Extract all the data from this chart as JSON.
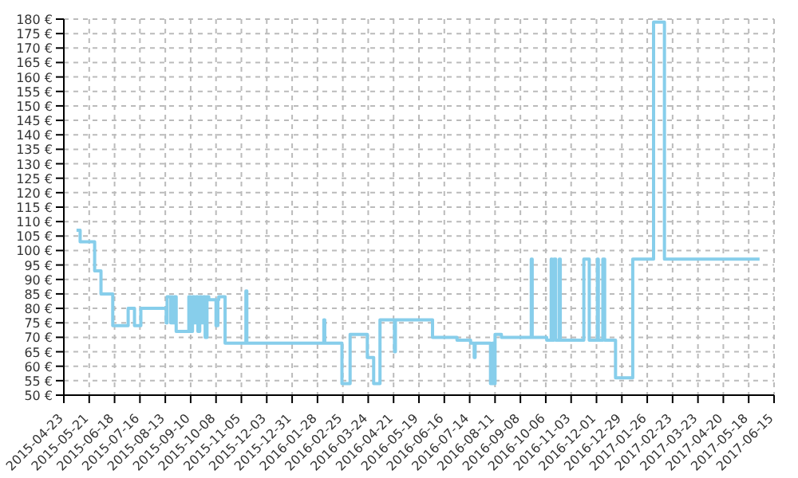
{
  "chart_data": {
    "type": "step",
    "x": [
      "2015-05-07",
      "2015-05-11",
      "2015-05-27",
      "2015-06-03",
      "2015-06-16",
      "2015-07-03",
      "2015-07-10",
      "2015-07-17",
      "2015-08-14",
      "2015-08-15",
      "2015-08-19",
      "2015-08-20",
      "2015-08-21",
      "2015-08-23",
      "2015-08-25",
      "2015-09-08",
      "2015-09-10",
      "2015-09-12",
      "2015-09-14",
      "2015-09-16",
      "2015-09-18",
      "2015-09-20",
      "2015-09-22",
      "2015-09-24",
      "2015-09-26",
      "2015-09-28",
      "2015-09-30",
      "2015-10-08",
      "2015-10-10",
      "2015-10-11",
      "2015-10-18",
      "2015-11-10",
      "2015-11-11",
      "2016-02-04",
      "2016-02-05",
      "2016-02-24",
      "2016-03-04",
      "2016-03-23",
      "2016-03-30",
      "2016-04-06",
      "2016-04-22",
      "2016-04-23",
      "2016-06-03",
      "2016-06-30",
      "2016-07-15",
      "2016-07-19",
      "2016-07-20",
      "2016-08-06",
      "2016-08-08",
      "2016-08-09",
      "2016-08-11",
      "2016-08-18",
      "2016-09-20",
      "2016-09-21",
      "2016-10-07",
      "2016-10-12",
      "2016-10-13",
      "2016-10-15",
      "2016-10-17",
      "2016-10-21",
      "2016-10-22",
      "2016-11-17",
      "2016-11-23",
      "2016-12-02",
      "2016-12-03",
      "2016-12-08",
      "2016-12-10",
      "2016-12-22",
      "2017-01-10",
      "2017-02-02",
      "2017-02-14",
      "2017-05-30"
    ],
    "series": [
      {
        "color": "#87ceeb",
        "values": [
          107,
          103,
          93,
          85,
          74,
          80,
          74,
          80,
          75,
          84,
          75,
          84,
          75,
          84,
          72,
          84,
          72,
          84,
          75,
          84,
          72,
          84,
          75,
          84,
          70,
          84,
          83,
          74,
          83,
          84,
          68,
          86,
          68,
          76,
          68,
          54,
          71,
          63,
          54,
          76,
          65,
          76,
          70,
          69,
          68,
          63,
          68,
          54,
          68,
          54,
          71,
          70,
          97,
          70,
          69,
          97,
          69,
          97,
          69,
          97,
          69,
          97,
          69,
          97,
          69,
          97,
          69,
          56,
          97,
          179,
          97,
          97
        ]
      }
    ],
    "xlim": [
      "2015-04-23",
      "2017-06-15"
    ],
    "xticks": [
      "2015-04-23",
      "2015-05-21",
      "2015-06-18",
      "2015-07-16",
      "2015-08-13",
      "2015-09-10",
      "2015-10-08",
      "2015-11-05",
      "2015-12-03",
      "2015-12-31",
      "2016-01-28",
      "2016-02-25",
      "2016-03-24",
      "2016-04-21",
      "2016-05-19",
      "2016-06-16",
      "2016-07-14",
      "2016-08-11",
      "2016-09-08",
      "2016-10-06",
      "2016-11-03",
      "2016-12-01",
      "2016-12-29",
      "2017-01-26",
      "2017-02-23",
      "2017-03-23",
      "2017-04-20",
      "2017-05-18",
      "2017-06-15"
    ],
    "ylim": [
      50,
      180
    ],
    "yticks": [
      {
        "value": 50,
        "label": "50 €"
      },
      {
        "value": 55,
        "label": "55 €"
      },
      {
        "value": 60,
        "label": "60 €"
      },
      {
        "value": 65,
        "label": "65 €"
      },
      {
        "value": 70,
        "label": "70 €"
      },
      {
        "value": 75,
        "label": "75 €"
      },
      {
        "value": 80,
        "label": "80 €"
      },
      {
        "value": 85,
        "label": "85 €"
      },
      {
        "value": 90,
        "label": "90 €"
      },
      {
        "value": 95,
        "label": "95 €"
      },
      {
        "value": 100,
        "label": "100 €"
      },
      {
        "value": 105,
        "label": "105 €"
      },
      {
        "value": 110,
        "label": "110 €"
      },
      {
        "value": 115,
        "label": "115 €"
      },
      {
        "value": 120,
        "label": "120 €"
      },
      {
        "value": 125,
        "label": "125 €"
      },
      {
        "value": 130,
        "label": "130 €"
      },
      {
        "value": 135,
        "label": "135 €"
      },
      {
        "value": 140,
        "label": "140 €"
      },
      {
        "value": 145,
        "label": "145 €"
      },
      {
        "value": 150,
        "label": "150 €"
      },
      {
        "value": 155,
        "label": "155 €"
      },
      {
        "value": 160,
        "label": "160 €"
      },
      {
        "value": 165,
        "label": "165 €"
      },
      {
        "value": 170,
        "label": "170 €"
      },
      {
        "value": 175,
        "label": "175 €"
      },
      {
        "value": 180,
        "label": "180 €"
      }
    ],
    "grid": true,
    "marker": "none",
    "line_style": "solid"
  }
}
